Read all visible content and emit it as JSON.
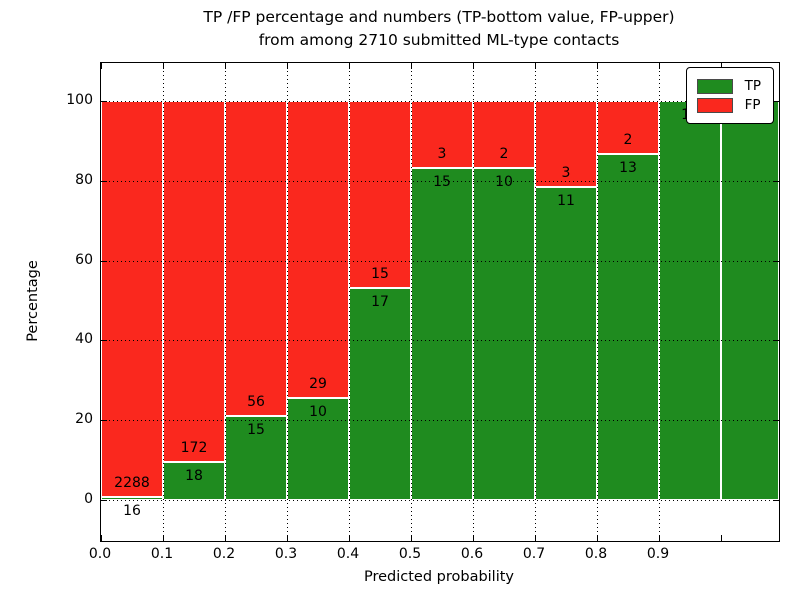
{
  "chart_data": {
    "type": "bar",
    "stacked": true,
    "normalized": "each bin scaled to 100%, labels show raw counts",
    "title_line1": "TP /FP percentage and numbers (TP-bottom value, FP-upper)",
    "title_line2": "from among 2710 submitted ML-type contacts",
    "xlabel": "Predicted probability",
    "ylabel": "Percentage",
    "total_submitted": 2710,
    "categories": [
      "0.0-0.1",
      "0.1-0.2",
      "0.2-0.3",
      "0.3-0.4",
      "0.4-0.5",
      "0.5-0.6",
      "0.6-0.7",
      "0.7-0.8",
      "0.8-0.9",
      "0.9-1.0"
    ],
    "series": [
      {
        "name": "TP",
        "color": "#1f8b1f",
        "counts": [
          16,
          18,
          15,
          10,
          17,
          15,
          10,
          11,
          13,
          15
        ]
      },
      {
        "name": "FP",
        "color": "#fa281e",
        "counts": [
          2288,
          172,
          56,
          29,
          15,
          3,
          2,
          3,
          2,
          0
        ]
      }
    ],
    "tp_percent": [
      0.7,
      9.5,
      21.1,
      25.6,
      53.1,
      83.3,
      83.3,
      78.6,
      86.7,
      100.0
    ],
    "x_tick_labels": [
      "0.0",
      "0.1",
      "0.2",
      "0.3",
      "0.4",
      "0.5",
      "0.6",
      "0.7",
      "0.8",
      "0.9"
    ],
    "y_tick_labels": [
      "0",
      "20",
      "40",
      "60",
      "80",
      "100"
    ],
    "ylim": [
      -10,
      110
    ],
    "grid": true,
    "grid_style": "dotted",
    "legend_position": "upper right",
    "colors": {
      "tp": "#1f8b1f",
      "fp": "#fa281e",
      "grid": "#000000",
      "background": "#ffffff"
    }
  }
}
